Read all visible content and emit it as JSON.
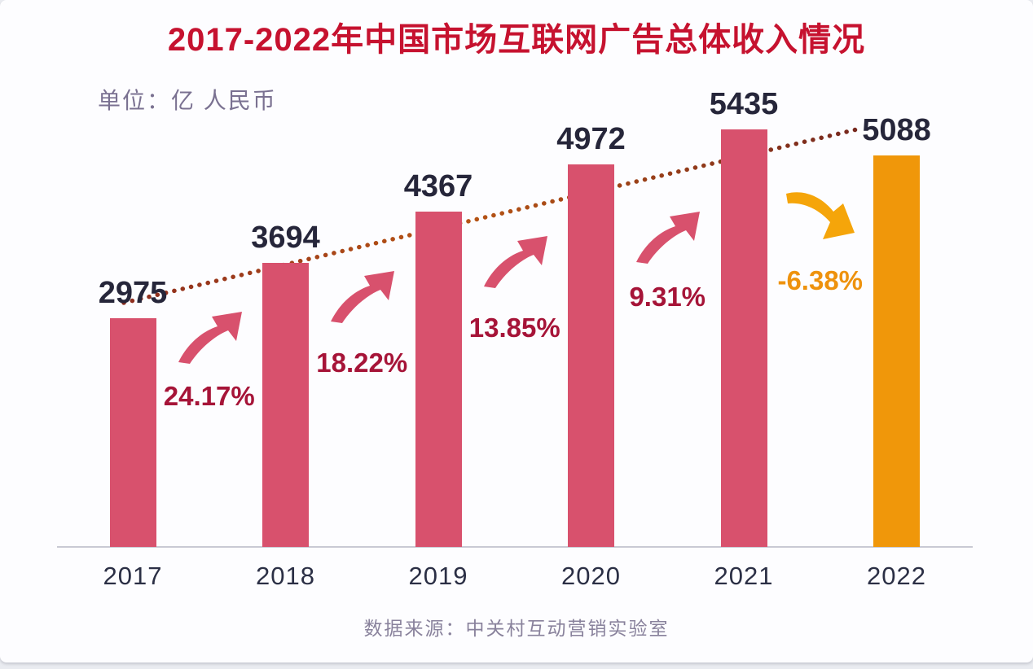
{
  "page": {
    "title": "2017-2022年中国市场互联网广告总体收入情况",
    "unit_label": "单位：亿 人民币",
    "source": "数据来源：中关村互动营销实验室"
  },
  "colors": {
    "title_red": "#c6122f",
    "bar_rose": "#d8516d",
    "bar_orange": "#f0970a",
    "growth_up_text": "#a61438",
    "growth_down_text": "#ee920d",
    "value_text": "#26263a",
    "year_text": "#2b2f45",
    "trend_dot_dark": "#8e2d1e",
    "trend_dot_mid": "#b85514",
    "axis_line": "#c9cad4"
  },
  "chart_data": {
    "type": "bar",
    "title": "2017-2022年中国市场互联网广告总体收入情况",
    "unit": "亿 人民币",
    "categories": [
      "2017",
      "2018",
      "2019",
      "2020",
      "2021",
      "2022"
    ],
    "values": [
      2975,
      3694,
      4367,
      4972,
      5435,
      5088
    ],
    "bar_colors": [
      "rose",
      "rose",
      "rose",
      "rose",
      "rose",
      "orange"
    ],
    "growth_labels": [
      "24.17%",
      "18.22%",
      "13.85%",
      "9.31%",
      "-6.38%"
    ],
    "growth_directions": [
      "up",
      "up",
      "up",
      "up",
      "down"
    ],
    "trendline": true,
    "legend": [],
    "grid": false,
    "ylim": [
      0,
      5800
    ],
    "xlabel": "",
    "ylabel": "",
    "source": "数据来源：中关村互动营销实验室"
  }
}
